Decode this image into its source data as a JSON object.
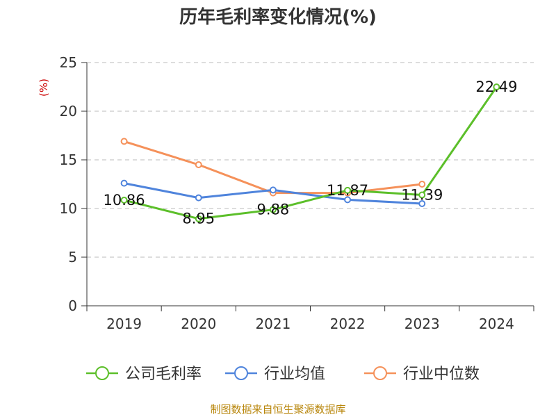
{
  "chart_data": {
    "type": "line",
    "title": "历年毛利率变化情况(%)",
    "ylabel": "(%)",
    "categories": [
      "2019",
      "2020",
      "2021",
      "2022",
      "2023",
      "2024"
    ],
    "ylim": [
      0,
      25
    ],
    "yticks": [
      "0",
      "5",
      "10",
      "15",
      "20",
      "25"
    ],
    "grid": "horizontal-dashed",
    "legend_position": "bottom",
    "series": [
      {
        "name": "公司毛利率",
        "color": "#5cbf2a",
        "values": [
          10.86,
          8.95,
          9.88,
          11.87,
          11.39,
          22.49
        ],
        "labels": [
          "10.86",
          "8.95",
          "9.88",
          "11.87",
          "11.39",
          "22.49"
        ]
      },
      {
        "name": "行业均值",
        "color": "#4f84dc",
        "values": [
          12.6,
          11.1,
          11.9,
          10.9,
          10.5,
          null
        ]
      },
      {
        "name": "行业中位数",
        "color": "#f5915a",
        "values": [
          16.9,
          14.5,
          11.6,
          11.6,
          12.5,
          null
        ]
      }
    ],
    "source": "制图数据来自恒生聚源数据库"
  }
}
